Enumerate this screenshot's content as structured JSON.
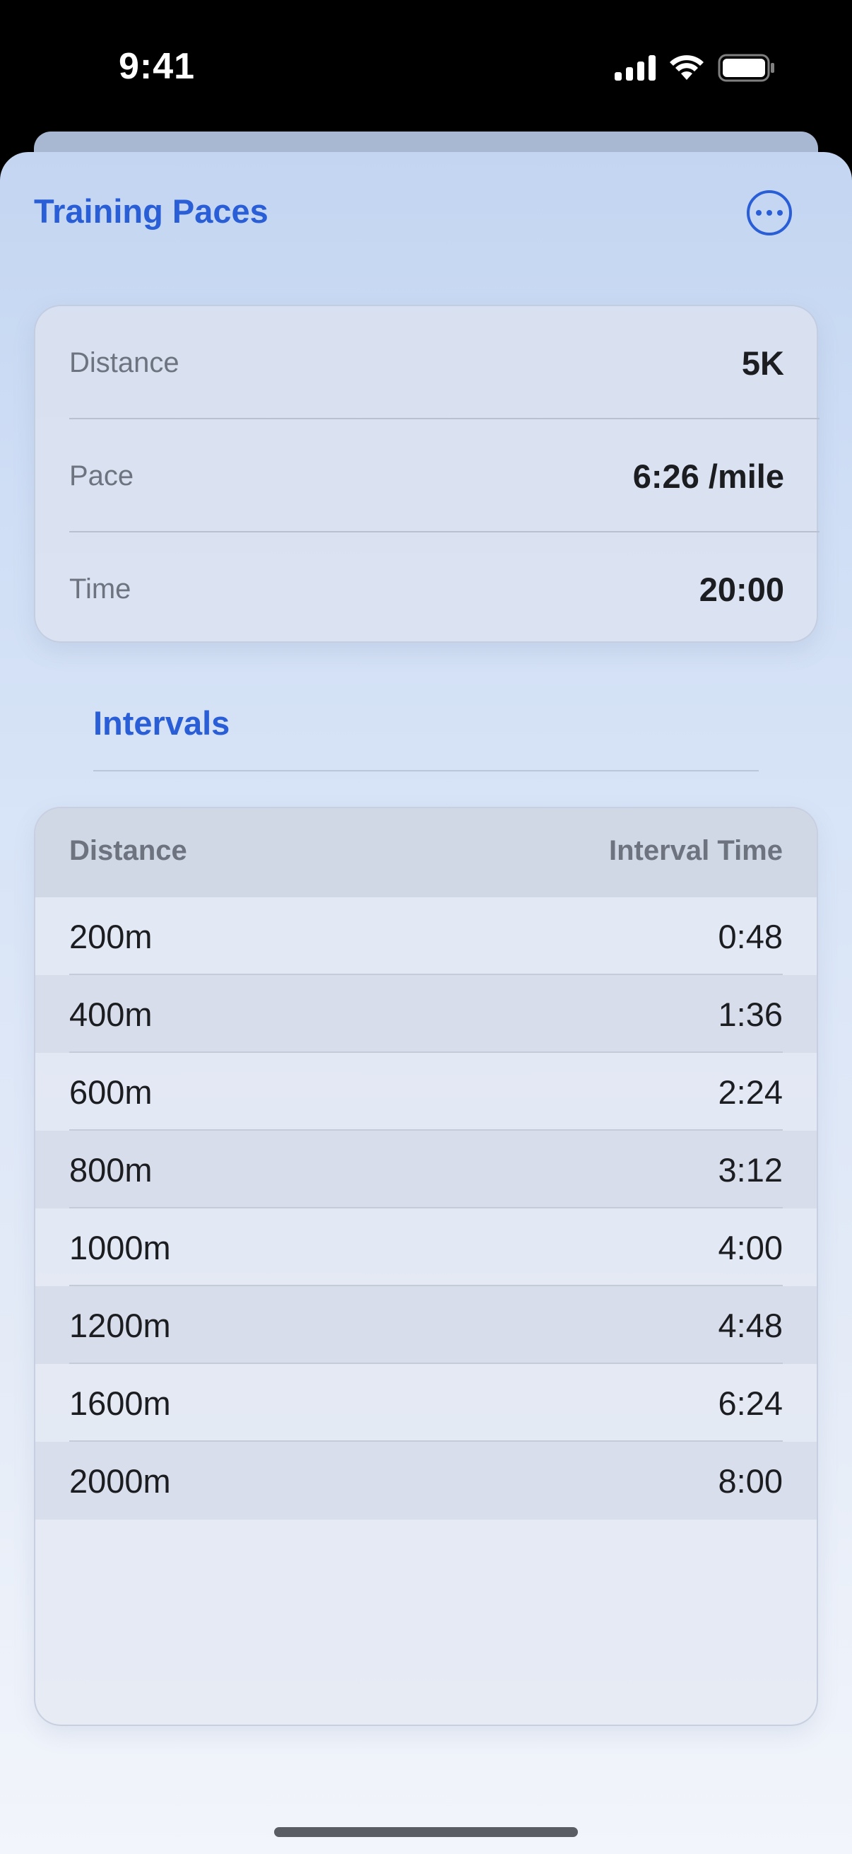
{
  "status_bar": {
    "time": "9:41"
  },
  "nav": {
    "title": "Training Paces",
    "more_icon": "ellipsis-circle-icon"
  },
  "summary": {
    "rows": [
      {
        "label": "Distance",
        "value": "5K"
      },
      {
        "label": "Pace",
        "value": "6:26 /mile"
      },
      {
        "label": "Time",
        "value": "20:00"
      }
    ]
  },
  "intervals": {
    "title": "Intervals",
    "columns": [
      "Distance",
      "Interval Time"
    ],
    "rows": [
      {
        "distance": "200m",
        "time": "0:48"
      },
      {
        "distance": "400m",
        "time": "1:36"
      },
      {
        "distance": "600m",
        "time": "2:24"
      },
      {
        "distance": "800m",
        "time": "3:12"
      },
      {
        "distance": "1000m",
        "time": "4:00"
      },
      {
        "distance": "1200m",
        "time": "4:48"
      },
      {
        "distance": "1600m",
        "time": "6:24"
      },
      {
        "distance": "2000m",
        "time": "8:00"
      }
    ]
  },
  "colors": {
    "accent": "#2a5ed6",
    "text_primary": "#1c1d21",
    "text_secondary": "#6e7380"
  }
}
